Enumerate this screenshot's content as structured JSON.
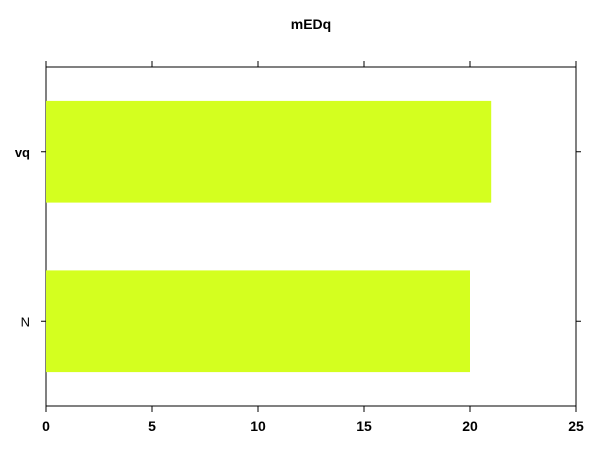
{
  "chart_data": {
    "type": "bar",
    "orientation": "horizontal",
    "title": "mEDq",
    "xlabel": "",
    "ylabel": "",
    "categories": [
      "N",
      "vq"
    ],
    "values": [
      20,
      21
    ],
    "xlim": [
      0,
      25
    ],
    "xticks": [
      "0",
      "5",
      "10",
      "15",
      "20",
      "25"
    ],
    "grid": false,
    "bar_color": "#d4ff1f"
  }
}
